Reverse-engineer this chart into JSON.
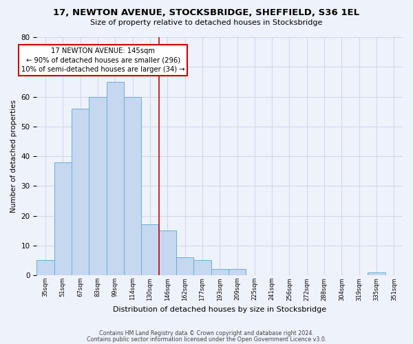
{
  "title": "17, NEWTON AVENUE, STOCKSBRIDGE, SHEFFIELD, S36 1EL",
  "subtitle": "Size of property relative to detached houses in Stocksbridge",
  "xlabel": "Distribution of detached houses by size in Stocksbridge",
  "ylabel": "Number of detached properties",
  "bar_labels": [
    "35sqm",
    "51sqm",
    "67sqm",
    "83sqm",
    "99sqm",
    "114sqm",
    "130sqm",
    "146sqm",
    "162sqm",
    "177sqm",
    "193sqm",
    "209sqm",
    "225sqm",
    "241sqm",
    "256sqm",
    "272sqm",
    "288sqm",
    "304sqm",
    "319sqm",
    "335sqm",
    "351sqm"
  ],
  "bar_heights": [
    5,
    38,
    56,
    60,
    65,
    60,
    17,
    15,
    6,
    5,
    2,
    2,
    0,
    0,
    0,
    0,
    0,
    0,
    0,
    1,
    0
  ],
  "bar_color": "#c5d8ef",
  "bar_edge_color": "#6aaed6",
  "vline_x": 7,
  "vline_color": "#cc0000",
  "annotation_title": "17 NEWTON AVENUE: 145sqm",
  "annotation_line1": "← 90% of detached houses are smaller (296)",
  "annotation_line2": "10% of semi-detached houses are larger (34) →",
  "annotation_box_color": "#ffffff",
  "annotation_box_edge": "#cc0000",
  "ylim": [
    0,
    80
  ],
  "yticks": [
    0,
    10,
    20,
    30,
    40,
    50,
    60,
    70,
    80
  ],
  "grid_color": "#d0d8e8",
  "background_color": "#eef2fa",
  "footer1": "Contains HM Land Registry data © Crown copyright and database right 2024.",
  "footer2": "Contains public sector information licensed under the Open Government Licence v3.0."
}
